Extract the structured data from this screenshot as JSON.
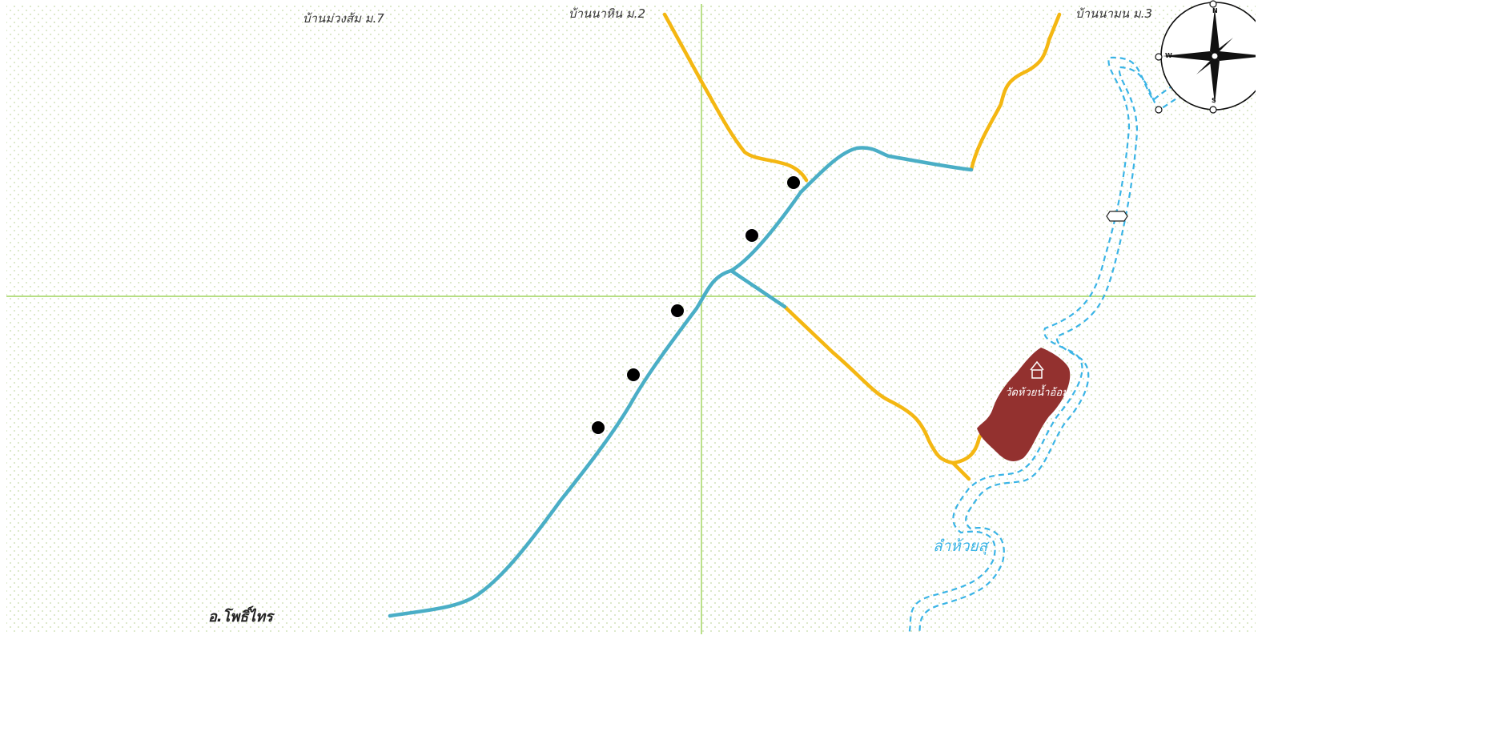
{
  "map": {
    "village_labels": {
      "ban_muang_som": "บ้านม่วงส้ม  ม.7",
      "ban_na_hin": "บ้านนาหิน ม.2",
      "ban_na_mon": "บ้านนามน ม.3"
    },
    "district_label": "อ.โพธิ์ไทร",
    "temple_label": "วัดห้วยน้ำอ้อม",
    "stream_label": "ลำห้วยสุ",
    "compass": {
      "north": "N",
      "south": "S",
      "west": "W"
    },
    "markers_count": 5
  },
  "colors": {
    "main_road": "#4aaec6",
    "local_road": "#f4b712",
    "stream": "#3ab4e6",
    "grid_line": "#8ccc3c",
    "dot_pattern": "#c4d9a6",
    "temple_area": "#93312f",
    "marker": "#000000"
  },
  "icons": [
    "compass-rose-icon",
    "temple-icon",
    "gate-icon",
    "star-marker-icon"
  ]
}
